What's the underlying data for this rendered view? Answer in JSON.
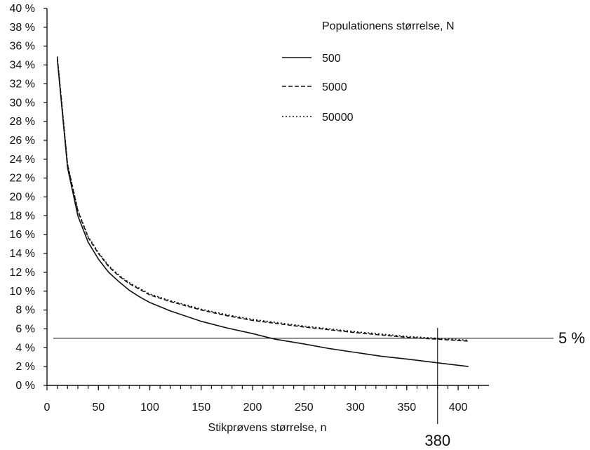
{
  "chart_data": {
    "type": "line",
    "xlabel": "Stikprøvens størrelse, n",
    "ylabel": "",
    "xlim": [
      0,
      400
    ],
    "ylim": [
      0,
      40
    ],
    "x_ticks": [
      0,
      50,
      100,
      150,
      200,
      250,
      300,
      350,
      400
    ],
    "x_tick_labels": [
      "0",
      "50",
      "100",
      "150",
      "200",
      "250",
      "300",
      "350",
      "400"
    ],
    "y_ticks": [
      0,
      2,
      4,
      6,
      8,
      10,
      12,
      14,
      16,
      18,
      20,
      22,
      24,
      26,
      28,
      30,
      32,
      34,
      36,
      38,
      40
    ],
    "y_tick_labels": [
      "0 %",
      "2 %",
      "4 %",
      "6 %",
      "8 %",
      "10 %",
      "12 %",
      "14 %",
      "16 %",
      "18 %",
      "20 %",
      "22 %",
      "24 %",
      "26 %",
      "28 %",
      "30 %",
      "32 %",
      "34 %",
      "36 %",
      "38 %",
      "40 %"
    ],
    "legend": {
      "title": "Populationens størrelse, N",
      "placement": "top-right"
    },
    "series": [
      {
        "name": "500",
        "style": "solid",
        "x": [
          10,
          20,
          30,
          40,
          50,
          60,
          70,
          80,
          90,
          100,
          120,
          150,
          175,
          200,
          222,
          250,
          275,
          300,
          325,
          350,
          380,
          410
        ],
        "y": [
          34.6,
          23.1,
          18.0,
          15.2,
          13.4,
          12.0,
          11.0,
          10.1,
          9.4,
          8.8,
          7.9,
          6.8,
          6.1,
          5.5,
          4.9,
          4.4,
          3.9,
          3.5,
          3.1,
          2.8,
          2.4,
          2.0
        ]
      },
      {
        "name": "5000",
        "style": "dashed",
        "x": [
          10,
          20,
          30,
          40,
          50,
          60,
          70,
          80,
          90,
          100,
          120,
          150,
          175,
          200,
          250,
          300,
          350,
          380,
          410
        ],
        "y": [
          34.8,
          23.4,
          18.5,
          15.7,
          14.0,
          12.6,
          11.6,
          10.8,
          10.2,
          9.6,
          8.9,
          8.0,
          7.4,
          6.9,
          6.2,
          5.6,
          5.1,
          4.9,
          4.7
        ]
      },
      {
        "name": "50000",
        "style": "dotted",
        "x": [
          10,
          20,
          30,
          40,
          50,
          60,
          70,
          80,
          90,
          100,
          120,
          150,
          175,
          200,
          250,
          300,
          350,
          380,
          410
        ],
        "y": [
          34.9,
          23.5,
          18.6,
          15.8,
          14.1,
          12.7,
          11.7,
          10.9,
          10.3,
          9.7,
          9.0,
          8.1,
          7.5,
          7.0,
          6.3,
          5.7,
          5.2,
          5.0,
          4.8
        ]
      }
    ],
    "reference_lines": [
      {
        "axis": "y",
        "value": 5,
        "label": "5 %"
      },
      {
        "axis": "x",
        "value": 380,
        "label": "380"
      }
    ],
    "grid": false
  }
}
